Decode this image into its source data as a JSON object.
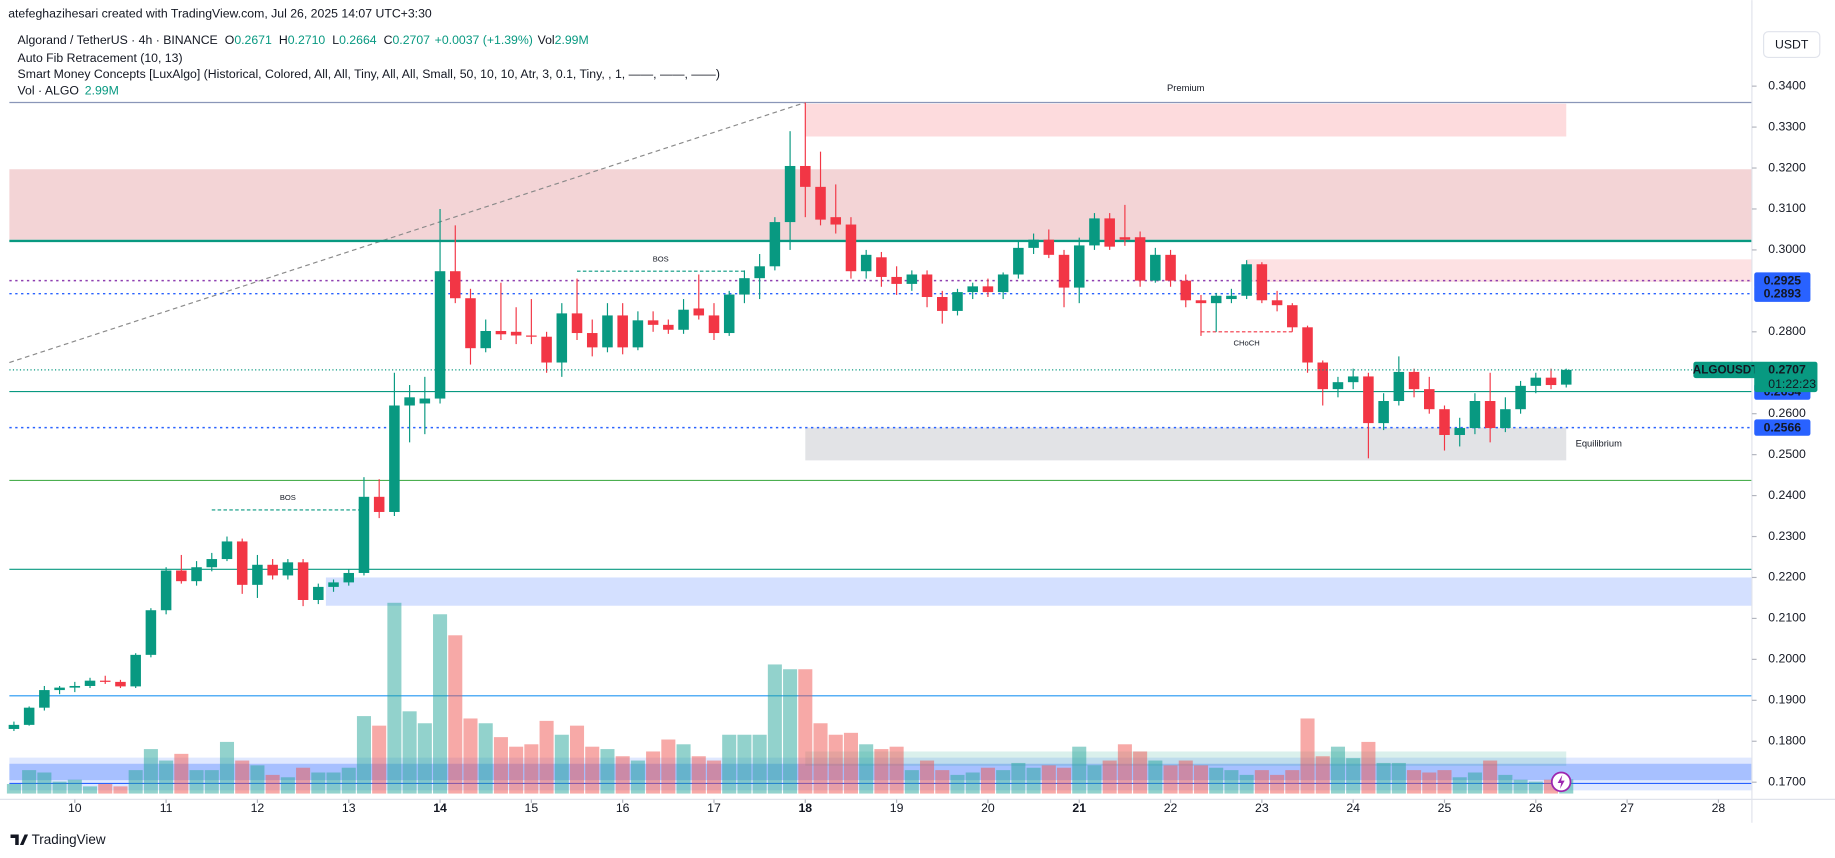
{
  "header": {
    "credit": "atefeghazihesari created with TradingView.com, Jul 26, 2025 14:07 UTC+3:30",
    "symbol_line": "Algorand / TetherUS · 4h · BINANCE",
    "ohlc": [
      [
        "O",
        "0.2671"
      ],
      [
        "H",
        "0.2710"
      ],
      [
        "L",
        "0.2664"
      ],
      [
        "C",
        "0.2707"
      ]
    ],
    "change": "+0.0037 (+1.39%)",
    "vol_label": "Vol",
    "vol_value": "2.99M",
    "indicators": [
      "Auto Fib Retracement (10, 13)",
      "Smart Money Concepts [LuxAlgo] (Historical, Colored, All, All, Tiny, All, All, Small, 50, 10, 10, Atr, 3, 0.1, Tiny, , 1, ——, ——, ——)"
    ],
    "vol_row": [
      "Vol · ALGO",
      "2.99M"
    ]
  },
  "currency_button": "USDT",
  "footer_logo": "TradingView",
  "chart_data": {
    "type": "candlestick",
    "up_color": "#089981",
    "down_color": "#f23645",
    "candles": [
      [
        0.183,
        0.1848,
        0.1825,
        0.184
      ],
      [
        0.184,
        0.1885,
        0.1838,
        0.1882
      ],
      [
        0.1882,
        0.1935,
        0.1875,
        0.1925
      ],
      [
        0.1925,
        0.1935,
        0.1915,
        0.1931
      ],
      [
        0.1931,
        0.1945,
        0.192,
        0.1935
      ],
      [
        0.1935,
        0.1955,
        0.193,
        0.1948
      ],
      [
        0.1948,
        0.196,
        0.194,
        0.1945
      ],
      [
        0.1945,
        0.195,
        0.193,
        0.1934
      ],
      [
        0.1934,
        0.2015,
        0.193,
        0.2011
      ],
      [
        0.2011,
        0.2125,
        0.2005,
        0.212
      ],
      [
        0.212,
        0.2225,
        0.211,
        0.2217
      ],
      [
        0.2217,
        0.2255,
        0.2185,
        0.2191
      ],
      [
        0.2191,
        0.224,
        0.218,
        0.2225
      ],
      [
        0.2225,
        0.226,
        0.2215,
        0.2245
      ],
      [
        0.2245,
        0.23,
        0.224,
        0.2288
      ],
      [
        0.2288,
        0.2295,
        0.216,
        0.2182
      ],
      [
        0.2182,
        0.2255,
        0.215,
        0.2231
      ],
      [
        0.2231,
        0.2245,
        0.2195,
        0.2205
      ],
      [
        0.2205,
        0.2245,
        0.2195,
        0.2237
      ],
      [
        0.2237,
        0.2245,
        0.213,
        0.2145
      ],
      [
        0.2145,
        0.2185,
        0.2135,
        0.2177
      ],
      [
        0.2177,
        0.2195,
        0.2165,
        0.2188
      ],
      [
        0.2188,
        0.222,
        0.218,
        0.2211
      ],
      [
        0.2211,
        0.2445,
        0.2205,
        0.2397
      ],
      [
        0.2397,
        0.244,
        0.2345,
        0.236
      ],
      [
        0.236,
        0.27,
        0.235,
        0.262
      ],
      [
        0.262,
        0.267,
        0.253,
        0.264
      ],
      [
        0.2625,
        0.269,
        0.255,
        0.2637
      ],
      [
        0.2637,
        0.31,
        0.2625,
        0.2948
      ],
      [
        0.2948,
        0.306,
        0.287,
        0.2882
      ],
      [
        0.2882,
        0.2905,
        0.272,
        0.276
      ],
      [
        0.276,
        0.283,
        0.275,
        0.2802
      ],
      [
        0.2802,
        0.292,
        0.278,
        0.2794
      ],
      [
        0.28,
        0.286,
        0.277,
        0.2791
      ],
      [
        0.2791,
        0.288,
        0.277,
        0.2788
      ],
      [
        0.2788,
        0.28,
        0.27,
        0.2725
      ],
      [
        0.2725,
        0.287,
        0.269,
        0.2845
      ],
      [
        0.2845,
        0.293,
        0.278,
        0.2797
      ],
      [
        0.2797,
        0.283,
        0.274,
        0.2762
      ],
      [
        0.2762,
        0.287,
        0.275,
        0.284
      ],
      [
        0.284,
        0.287,
        0.2745,
        0.2762
      ],
      [
        0.2762,
        0.285,
        0.2755,
        0.2828
      ],
      [
        0.2828,
        0.285,
        0.28,
        0.2817
      ],
      [
        0.2817,
        0.283,
        0.2795,
        0.2805
      ],
      [
        0.2805,
        0.288,
        0.2795,
        0.2854
      ],
      [
        0.2857,
        0.294,
        0.283,
        0.284
      ],
      [
        0.284,
        0.287,
        0.278,
        0.2797
      ],
      [
        0.2797,
        0.29,
        0.279,
        0.2891
      ],
      [
        0.2891,
        0.295,
        0.287,
        0.2931
      ],
      [
        0.2931,
        0.299,
        0.288,
        0.296
      ],
      [
        0.296,
        0.308,
        0.295,
        0.3068
      ],
      [
        0.3068,
        0.329,
        0.3,
        0.3205
      ],
      [
        0.3205,
        0.336,
        0.308,
        0.3154
      ],
      [
        0.3154,
        0.324,
        0.306,
        0.3074
      ],
      [
        0.308,
        0.316,
        0.304,
        0.3062
      ],
      [
        0.3062,
        0.308,
        0.293,
        0.2948
      ],
      [
        0.2948,
        0.3,
        0.293,
        0.2988
      ],
      [
        0.2982,
        0.2995,
        0.291,
        0.2934
      ],
      [
        0.2934,
        0.296,
        0.289,
        0.2917
      ],
      [
        0.2917,
        0.295,
        0.29,
        0.294
      ],
      [
        0.294,
        0.295,
        0.286,
        0.2885
      ],
      [
        0.2885,
        0.29,
        0.282,
        0.2851
      ],
      [
        0.2851,
        0.2905,
        0.284,
        0.2897
      ],
      [
        0.2897,
        0.292,
        0.288,
        0.2911
      ],
      [
        0.2911,
        0.293,
        0.2885,
        0.2897
      ],
      [
        0.2897,
        0.2945,
        0.288,
        0.294
      ],
      [
        0.294,
        0.302,
        0.293,
        0.3005
      ],
      [
        0.3005,
        0.304,
        0.299,
        0.3025
      ],
      [
        0.3025,
        0.305,
        0.298,
        0.2988
      ],
      [
        0.2988,
        0.3,
        0.286,
        0.2908
      ],
      [
        0.2908,
        0.303,
        0.287,
        0.3011
      ],
      [
        0.3011,
        0.309,
        0.3,
        0.3077
      ],
      [
        0.3077,
        0.309,
        0.3,
        0.3008
      ],
      [
        0.3031,
        0.311,
        0.301,
        0.3025
      ],
      [
        0.3031,
        0.3045,
        0.291,
        0.2925
      ],
      [
        0.2925,
        0.3005,
        0.292,
        0.2988
      ],
      [
        0.2988,
        0.3,
        0.291,
        0.2925
      ],
      [
        0.2925,
        0.294,
        0.286,
        0.2877
      ],
      [
        0.2877,
        0.289,
        0.279,
        0.287
      ],
      [
        0.287,
        0.2895,
        0.28,
        0.2888
      ],
      [
        0.288,
        0.2905,
        0.287,
        0.2888
      ],
      [
        0.2888,
        0.2975,
        0.288,
        0.2965
      ],
      [
        0.2965,
        0.297,
        0.287,
        0.2877
      ],
      [
        0.2877,
        0.29,
        0.285,
        0.2865
      ],
      [
        0.2865,
        0.287,
        0.28,
        0.2811
      ],
      [
        0.2811,
        0.2815,
        0.27,
        0.2725
      ],
      [
        0.2725,
        0.273,
        0.262,
        0.266
      ],
      [
        0.266,
        0.269,
        0.264,
        0.2677
      ],
      [
        0.2677,
        0.271,
        0.266,
        0.2691
      ],
      [
        0.2691,
        0.27,
        0.2491,
        0.2577
      ],
      [
        0.2577,
        0.265,
        0.256,
        0.2631
      ],
      [
        0.2631,
        0.274,
        0.262,
        0.2702
      ],
      [
        0.2702,
        0.271,
        0.264,
        0.266
      ],
      [
        0.266,
        0.269,
        0.26,
        0.2611
      ],
      [
        0.2611,
        0.262,
        0.251,
        0.2548
      ],
      [
        0.2548,
        0.259,
        0.252,
        0.2565
      ],
      [
        0.2565,
        0.265,
        0.255,
        0.2631
      ],
      [
        0.2631,
        0.27,
        0.253,
        0.2565
      ],
      [
        0.2565,
        0.264,
        0.2555,
        0.2611
      ],
      [
        0.2611,
        0.268,
        0.26,
        0.2668
      ],
      [
        0.2668,
        0.27,
        0.265,
        0.2688
      ],
      [
        0.2688,
        0.271,
        0.266,
        0.267
      ],
      [
        0.2671,
        0.271,
        0.2664,
        0.2707
      ]
    ],
    "volume": [
      2.0,
      4.9,
      4.4,
      2.5,
      2.9,
      1.5,
      2.0,
      1.5,
      4.9,
      9.3,
      6.9,
      8.3,
      4.9,
      4.9,
      10.8,
      6.9,
      5.9,
      3.9,
      3.4,
      5.4,
      4.4,
      4.4,
      5.4,
      16.2,
      14.2,
      39.9,
      17.2,
      14.7,
      37.5,
      33.1,
      15.7,
      14.7,
      11.8,
      9.8,
      10.3,
      15.2,
      12.3,
      14.2,
      9.8,
      9.3,
      7.8,
      6.9,
      8.8,
      11.3,
      10.3,
      7.8,
      6.9,
      12.3,
      12.3,
      12.3,
      27.0,
      26.0,
      26.0,
      14.7,
      12.3,
      12.7,
      10.3,
      9.3,
      9.8,
      4.9,
      6.9,
      4.9,
      3.9,
      4.4,
      5.4,
      4.9,
      6.4,
      5.4,
      5.9,
      5.4,
      9.8,
      5.9,
      6.9,
      10.3,
      8.8,
      6.9,
      5.9,
      6.9,
      5.9,
      5.4,
      4.9,
      3.9,
      4.9,
      3.9,
      4.9,
      15.7,
      7.8,
      9.8,
      7.4,
      10.8,
      6.4,
      6.4,
      4.9,
      4.4,
      4.9,
      3.4,
      4.4,
      6.9,
      3.9,
      2.9,
      2.5,
      2.9,
      2.99
    ],
    "volume_up_color": "rgba(38,166,154,0.5)",
    "volume_down_color": "rgba(239,83,80,0.5)",
    "xlim": [
      -0.3,
      114.2
    ],
    "ylim": [
      0.1658,
      0.3553
    ],
    "xticks": [
      {
        "value": 4,
        "label": "10"
      },
      {
        "value": 10,
        "label": "11"
      },
      {
        "value": 16,
        "label": "12"
      },
      {
        "value": 22,
        "label": "13"
      },
      {
        "value": 28,
        "label": "14"
      },
      {
        "value": 34,
        "label": "15"
      },
      {
        "value": 40,
        "label": "16"
      },
      {
        "value": 46,
        "label": "17"
      },
      {
        "value": 52,
        "label": "18"
      },
      {
        "value": 58,
        "label": "19"
      },
      {
        "value": 64,
        "label": "20"
      },
      {
        "value": 70,
        "label": "21"
      },
      {
        "value": 76,
        "label": "22"
      },
      {
        "value": 82,
        "label": "23"
      },
      {
        "value": 88,
        "label": "24"
      },
      {
        "value": 94,
        "label": "25"
      },
      {
        "value": 100,
        "label": "26"
      },
      {
        "value": 106,
        "label": "27"
      },
      {
        "value": 112,
        "label": "28"
      }
    ],
    "yticks": [
      {
        "value": 0.34,
        "label": "0.3400"
      },
      {
        "value": 0.33,
        "label": "0.3300"
      },
      {
        "value": 0.32,
        "label": "0.3200"
      },
      {
        "value": 0.31,
        "label": "0.3100"
      },
      {
        "value": 0.3,
        "label": "0.3000"
      },
      {
        "value": 0.28,
        "label": "0.2800"
      },
      {
        "value": 0.26,
        "label": "0.2600"
      },
      {
        "value": 0.25,
        "label": "0.2500"
      },
      {
        "value": 0.24,
        "label": "0.2400"
      },
      {
        "value": 0.23,
        "label": "0.2300"
      },
      {
        "value": 0.22,
        "label": "0.2200"
      },
      {
        "value": 0.21,
        "label": "0.2100"
      },
      {
        "value": 0.2,
        "label": "0.2000"
      },
      {
        "value": 0.19,
        "label": "0.1900"
      },
      {
        "value": 0.18,
        "label": "0.1800"
      },
      {
        "value": 0.17,
        "label": "0.1700"
      }
    ],
    "zones": [
      {
        "x": [
          52,
          102
        ],
        "y": [
          0.3357,
          0.3277
        ],
        "color": "rgba(242,54,69,0.18)",
        "label": "Premium",
        "label_color": "#f23645"
      },
      {
        "x": [
          -0.3,
          114.2
        ],
        "y": [
          0.3197,
          0.3025
        ],
        "color": "rgba(200,60,70,0.22)"
      },
      {
        "x": [
          81,
          114.2
        ],
        "y": [
          0.2977,
          0.2922
        ],
        "color": "rgba(242,54,69,0.15)"
      },
      {
        "x": [
          52,
          102
        ],
        "y": [
          0.2566,
          0.2486
        ],
        "color": "rgba(150,155,165,0.28)",
        "label": "Equilibrium",
        "label_color": "#a0a4ad"
      },
      {
        "x": [
          20.5,
          114.2
        ],
        "y": [
          0.22,
          0.2131
        ],
        "color": "rgba(41,98,255,0.2)"
      },
      {
        "x": [
          -0.3,
          114.2
        ],
        "y": [
          0.176,
          0.168
        ],
        "color": "rgba(41,98,255,0.15)"
      },
      {
        "x": [
          -0.3,
          114.2
        ],
        "y": [
          0.1745,
          0.1705
        ],
        "color": "rgba(41,98,255,0.3)"
      },
      {
        "x": [
          52,
          102
        ],
        "y": [
          0.1775,
          0.174
        ],
        "color": "rgba(8,153,129,0.15)"
      }
    ],
    "levels": [
      {
        "value": 0.336,
        "color": "#8a96b8",
        "dash": false,
        "width": 1
      },
      {
        "value": 0.3022,
        "color": "#089981",
        "dash": false,
        "width": 2
      },
      {
        "value": 0.2925,
        "color": "#8e3fb0",
        "dash": true,
        "width": 1.2,
        "tag": true,
        "tag_color": "#2962ff"
      },
      {
        "value": 0.2893,
        "color": "#2962ff",
        "dash": true,
        "width": 1.2,
        "tag": true,
        "tag_color": "#2962ff"
      },
      {
        "value": 0.2654,
        "color": "#089981",
        "dash": false,
        "width": 1,
        "tag": true,
        "tag_color": "#2962ff"
      },
      {
        "value": 0.2566,
        "color": "#2962ff",
        "dash": true,
        "width": 1.2,
        "tag": true,
        "tag_color": "#2962ff"
      },
      {
        "value": 0.2437,
        "color": "#4caf50",
        "dash": false,
        "width": 1
      },
      {
        "value": 0.222,
        "color": "#089981",
        "dash": false,
        "width": 1
      },
      {
        "value": 0.1911,
        "color": "#2196f3",
        "dash": false,
        "width": 1
      },
      {
        "value": 0.1697,
        "color": "#2962ff",
        "dash": false,
        "width": 1
      }
    ],
    "structures": [
      {
        "x": [
          13,
          23
        ],
        "y": 0.2365,
        "color": "#089981",
        "label": "BOS",
        "label_pos": "above"
      },
      {
        "x": [
          37,
          48
        ],
        "y": 0.2948,
        "color": "#089981",
        "label": "BOS",
        "label_pos": "above"
      },
      {
        "x": [
          78,
          84
        ],
        "y": 0.28,
        "color": "#f23645",
        "label": "CHoCH",
        "label_pos": "below"
      }
    ],
    "fib_line": {
      "x": [
        -0.3,
        52
      ],
      "y": [
        0.2725,
        0.336
      ],
      "color": "#8a8a8a"
    },
    "price_tag": {
      "symbol": "ALGOUSDT",
      "value": 0.2707,
      "countdown": "01:22:23",
      "color": "#089981"
    }
  }
}
